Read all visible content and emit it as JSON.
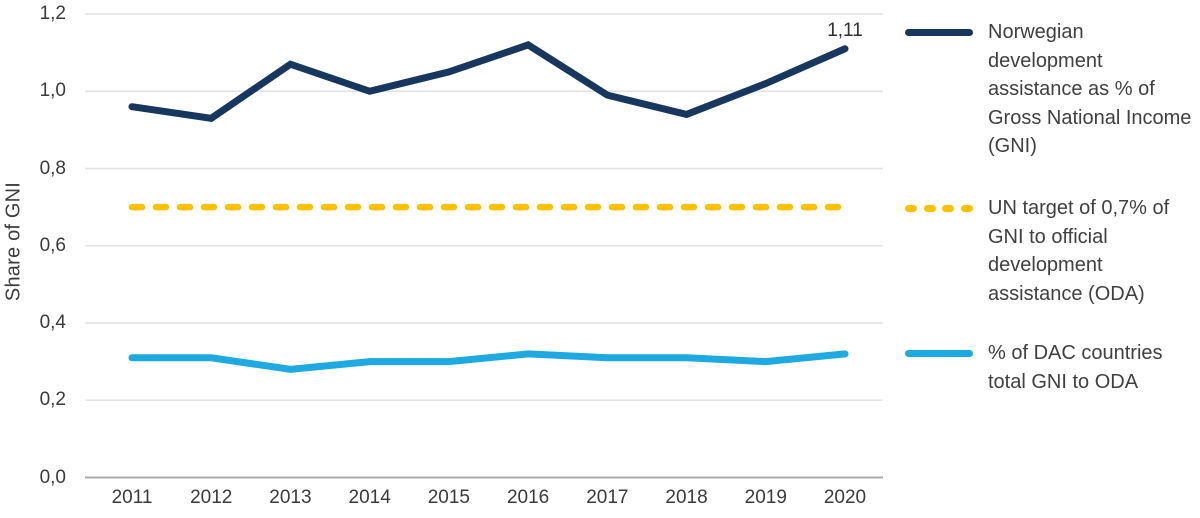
{
  "chart_data": {
    "type": "line",
    "title": "",
    "xlabel": "",
    "ylabel": "Share of GNI",
    "categories": [
      "2011",
      "2012",
      "2013",
      "2014",
      "2015",
      "2016",
      "2017",
      "2018",
      "2019",
      "2020"
    ],
    "ylim": [
      0.0,
      1.2
    ],
    "yticks": [
      {
        "value": 0.0,
        "label": "0,0"
      },
      {
        "value": 0.2,
        "label": "0,2"
      },
      {
        "value": 0.4,
        "label": "0,4"
      },
      {
        "value": 0.6,
        "label": "0,6"
      },
      {
        "value": 0.8,
        "label": "0,8"
      },
      {
        "value": 1.0,
        "label": "1,0"
      },
      {
        "value": 1.2,
        "label": "1,2"
      }
    ],
    "grid": true,
    "legend_position": "right",
    "series": [
      {
        "name": "Norwegian development assistance as % of Gross National Income (GNI)",
        "color": "#17375e",
        "style": "solid",
        "values": [
          0.96,
          0.93,
          1.07,
          1.0,
          1.05,
          1.12,
          0.99,
          0.94,
          1.02,
          1.11
        ]
      },
      {
        "name": "UN target of 0,7% of GNI to official development assistance (ODA)",
        "color": "#fdc100",
        "style": "dashed",
        "values": [
          0.7,
          0.7,
          0.7,
          0.7,
          0.7,
          0.7,
          0.7,
          0.7,
          0.7,
          0.7
        ]
      },
      {
        "name": "% of DAC countries total GNI to ODA",
        "color": "#1ea9e1",
        "style": "solid",
        "values": [
          0.31,
          0.31,
          0.28,
          0.3,
          0.3,
          0.32,
          0.31,
          0.31,
          0.3,
          0.32
        ]
      }
    ],
    "annotation": {
      "text": "1,11",
      "series": 0,
      "index": 9
    },
    "colors": {
      "grid": "#e2e2e2",
      "axis": "#a8a8a8",
      "tick_text": "#3a3a3a",
      "legend_text": "#404040"
    }
  }
}
